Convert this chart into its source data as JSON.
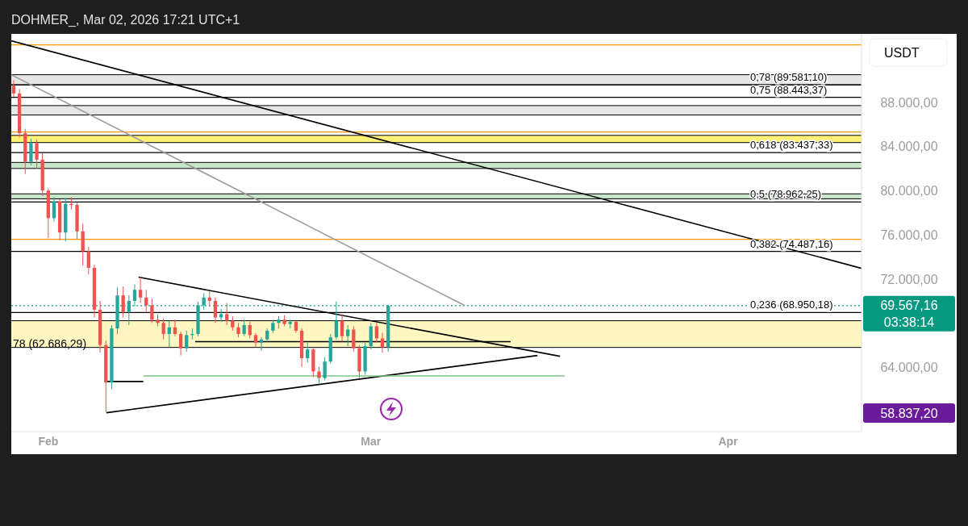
{
  "chart_data": {
    "type": "candlestick",
    "title": "DOHMER_, Mar 02, 2026 17:21 UTC+1",
    "ylabel": "USDT",
    "x": [
      "2026-01-29T00:00",
      "2026-01-29T12:00",
      "2026-01-30T00:00",
      "2026-01-30T12:00",
      "2026-01-31T00:00",
      "2026-01-31T12:00",
      "2026-02-01T00:00",
      "2026-02-01T12:00",
      "2026-02-02T00:00",
      "2026-02-02T12:00",
      "2026-02-03T00:00",
      "2026-02-03T12:00",
      "2026-02-04T00:00",
      "2026-02-04T12:00",
      "2026-02-05T00:00",
      "2026-02-05T12:00",
      "2026-02-06T00:00",
      "2026-02-06T12:00",
      "2026-02-07T00:00",
      "2026-02-07T12:00",
      "2026-02-08T00:00",
      "2026-02-08T12:00",
      "2026-02-09T00:00",
      "2026-02-09T12:00",
      "2026-02-10T00:00",
      "2026-02-10T12:00",
      "2026-02-11T00:00",
      "2026-02-11T12:00",
      "2026-02-12T00:00",
      "2026-02-12T12:00",
      "2026-02-13T00:00",
      "2026-02-13T12:00",
      "2026-02-14T00:00",
      "2026-02-14T12:00",
      "2026-02-15T00:00",
      "2026-02-15T12:00",
      "2026-02-16T00:00",
      "2026-02-16T12:00",
      "2026-02-17T00:00",
      "2026-02-17T12:00",
      "2026-02-18T00:00",
      "2026-02-18T12:00",
      "2026-02-19T00:00",
      "2026-02-19T12:00",
      "2026-02-20T00:00",
      "2026-02-20T12:00",
      "2026-02-21T00:00",
      "2026-02-21T12:00",
      "2026-02-22T00:00",
      "2026-02-22T12:00",
      "2026-02-23T00:00",
      "2026-02-23T12:00",
      "2026-02-24T00:00",
      "2026-02-24T12:00",
      "2026-02-25T00:00",
      "2026-02-25T12:00",
      "2026-02-26T00:00",
      "2026-02-26T12:00",
      "2026-02-27T00:00",
      "2026-02-27T12:00",
      "2026-02-28T00:00",
      "2026-02-28T12:00",
      "2026-03-01T00:00",
      "2026-03-01T12:00",
      "2026-03-02T00:00",
      "2026-03-02T12:00"
    ],
    "ohlc": [
      [
        89500,
        90000,
        88500,
        88800
      ],
      [
        88800,
        89200,
        84800,
        85200
      ],
      [
        85200,
        85600,
        81500,
        82600
      ],
      [
        82600,
        84700,
        82300,
        84300
      ],
      [
        84300,
        84600,
        82000,
        82800
      ],
      [
        82800,
        83400,
        79500,
        80000
      ],
      [
        80000,
        80200,
        75700,
        77500
      ],
      [
        77500,
        79400,
        77200,
        79000
      ],
      [
        79000,
        79200,
        75500,
        76200
      ],
      [
        76200,
        79300,
        75400,
        78800
      ],
      [
        78800,
        79400,
        78300,
        78700
      ],
      [
        78700,
        78900,
        75600,
        76300
      ],
      [
        76300,
        77000,
        73200,
        74500
      ],
      [
        74500,
        74900,
        72400,
        73000
      ],
      [
        73000,
        73300,
        68500,
        69200
      ],
      [
        69200,
        70000,
        65300,
        66000
      ],
      [
        66000,
        66400,
        59930,
        62600
      ],
      [
        62600,
        67800,
        62000,
        67500
      ],
      [
        67500,
        71200,
        67000,
        70500
      ],
      [
        70500,
        71300,
        68500,
        69000
      ],
      [
        69000,
        70500,
        67800,
        70000
      ],
      [
        70000,
        71500,
        69500,
        71000
      ],
      [
        71000,
        72150,
        69800,
        70300
      ],
      [
        70300,
        71000,
        69000,
        69600
      ],
      [
        69600,
        70200,
        68000,
        68300
      ],
      [
        68300,
        68800,
        67700,
        68000
      ],
      [
        68000,
        68400,
        66500,
        67000
      ],
      [
        67000,
        68200,
        65800,
        67600
      ],
      [
        67600,
        68300,
        66800,
        67000
      ],
      [
        67000,
        67200,
        65050,
        65700
      ],
      [
        65700,
        67300,
        65400,
        66900
      ],
      [
        66900,
        67500,
        66500,
        67000
      ],
      [
        67000,
        69900,
        66800,
        69600
      ],
      [
        69600,
        70700,
        69200,
        70300
      ],
      [
        70300,
        70900,
        69500,
        70000
      ],
      [
        70000,
        70300,
        68000,
        68500
      ],
      [
        68500,
        69300,
        68100,
        68800
      ],
      [
        68800,
        69800,
        67800,
        68200
      ],
      [
        68200,
        68600,
        67300,
        67600
      ],
      [
        67600,
        68000,
        66700,
        67000
      ],
      [
        67000,
        68300,
        66800,
        67800
      ],
      [
        67800,
        68100,
        66600,
        66900
      ],
      [
        66900,
        67100,
        65800,
        66200
      ],
      [
        66200,
        66700,
        65500,
        66500
      ],
      [
        66500,
        67500,
        66300,
        67300
      ],
      [
        67300,
        68200,
        67100,
        68000
      ],
      [
        68000,
        68600,
        67500,
        68300
      ],
      [
        68300,
        68700,
        67700,
        67900
      ],
      [
        67900,
        68300,
        67500,
        68100
      ],
      [
        68100,
        68200,
        67100,
        67300
      ],
      [
        67300,
        67500,
        64000,
        64800
      ],
      [
        64800,
        66200,
        64400,
        65600
      ],
      [
        65600,
        65700,
        63100,
        63600
      ],
      [
        63600,
        64000,
        62500,
        63000
      ],
      [
        63000,
        64900,
        62800,
        64500
      ],
      [
        64500,
        67000,
        64300,
        66700
      ],
      [
        66700,
        69950,
        66500,
        68200
      ],
      [
        68200,
        68800,
        66300,
        66800
      ],
      [
        66800,
        67800,
        65900,
        67400
      ],
      [
        67400,
        67700,
        65400,
        65700
      ],
      [
        65700,
        66000,
        63000,
        63600
      ],
      [
        63600,
        66200,
        63300,
        65900
      ],
      [
        65900,
        68000,
        65600,
        67700
      ],
      [
        67700,
        68000,
        66200,
        66600
      ],
      [
        66600,
        67100,
        65300,
        65800
      ],
      [
        65800,
        69660,
        65400,
        69567.16
      ]
    ],
    "series": [
      {
        "type": "line",
        "color": "#000000",
        "x": [
          "2026-01-28T19:00",
          "2026-04-12T14:00"
        ],
        "values": [
          93570,
          72950
        ]
      },
      {
        "type": "line",
        "color": "#9e9e9e",
        "x": [
          "2026-01-28T19:00",
          "2026-03-09T03:00"
        ],
        "values": [
          90500,
          69590
        ]
      },
      {
        "type": "line",
        "color": "#000000",
        "x": [
          "2026-02-08T20:00",
          "2026-03-17T10:00"
        ],
        "values": [
          72150,
          64980
        ]
      },
      {
        "type": "line",
        "color": "#000000",
        "x": [
          "2026-02-06T01:00",
          "2026-03-15T11:00"
        ],
        "values": [
          59860,
          65050
        ]
      },
      {
        "type": "line",
        "color": "#000000",
        "x": [
          "2026-02-13T18:00",
          "2026-03-13T03:00"
        ],
        "values": [
          66300,
          66300
        ]
      },
      {
        "type": "line",
        "color": "#81c784",
        "x": [
          "2026-02-09T06:00",
          "2026-03-17T20:00"
        ],
        "values": [
          63200,
          63200
        ]
      },
      {
        "type": "line",
        "color": "#000000",
        "x": [
          "2026-02-05T22:00",
          "2026-02-09T06:00"
        ],
        "values": [
          62690,
          62690
        ]
      }
    ],
    "xlim": [
      "2026-01-28T19:00",
      "2026-04-12T14:00"
    ],
    "xticks": [
      {
        "value": "2026-02-01",
        "label": "Feb"
      },
      {
        "value": "2026-03-01",
        "label": "Mar"
      },
      {
        "value": "2026-04-01",
        "label": "Apr"
      }
    ],
    "ylim": [
      58150,
      94200
    ],
    "yticks": [
      {
        "value": 64000,
        "label": "64.000,00"
      },
      {
        "value": 72000,
        "label": "72.000,00"
      },
      {
        "value": 76000,
        "label": "76.000,00"
      },
      {
        "value": 80000,
        "label": "80.000,00"
      },
      {
        "value": 84000,
        "label": "84.000,00"
      },
      {
        "value": 88000,
        "label": "88.000,00"
      }
    ],
    "bands": [
      {
        "axis": "y",
        "from": 89581.1,
        "to": 90500,
        "color": "#e6e6e6"
      },
      {
        "axis": "y",
        "from": 86850,
        "to": 87700,
        "color": "#e6e6e6"
      },
      {
        "axis": "y",
        "from": 84350,
        "to": 85000,
        "color": "#fff176"
      },
      {
        "axis": "y",
        "from": 82000,
        "to": 82550,
        "color": "#c8e6c9"
      },
      {
        "axis": "y",
        "from": 79250,
        "to": 79700,
        "color": "#c8e6c9"
      },
      {
        "axis": "y",
        "from": 65780,
        "to": 68200,
        "color": "#fff7c2"
      }
    ],
    "ref_lines": [
      {
        "axis": "y",
        "value": 93200,
        "color": "#ff9800"
      },
      {
        "axis": "y",
        "value": 89581.1,
        "label": "0,78 (89.581,10)",
        "color": "#000000"
      },
      {
        "axis": "y",
        "value": 88443.37,
        "label": "0,75 (88.443,37)",
        "color": "#000000"
      },
      {
        "axis": "y",
        "value": 85300,
        "color": "#ff9800"
      },
      {
        "axis": "y",
        "value": 83437.33,
        "label": "0,618 (83.437,33)",
        "color": "#000000"
      },
      {
        "axis": "y",
        "value": 78962.25,
        "label": "0,5 (78.962,25)",
        "color": "#000000"
      },
      {
        "axis": "y",
        "value": 75580,
        "color": "#ff9800"
      },
      {
        "axis": "y",
        "value": 74487.16,
        "label": "0,382 (74.487,16)",
        "color": "#000000"
      },
      {
        "axis": "y",
        "value": 68950.18,
        "label": "0,236 (68.950,18)",
        "color": "#000000"
      },
      {
        "axis": "y",
        "value": 69567.16,
        "label": "69.567,16",
        "color": "#089981",
        "line_style": "dotted"
      }
    ],
    "annotations": [
      "03:38:14",
      "78 (62.686,29)",
      "58.837,20"
    ]
  }
}
